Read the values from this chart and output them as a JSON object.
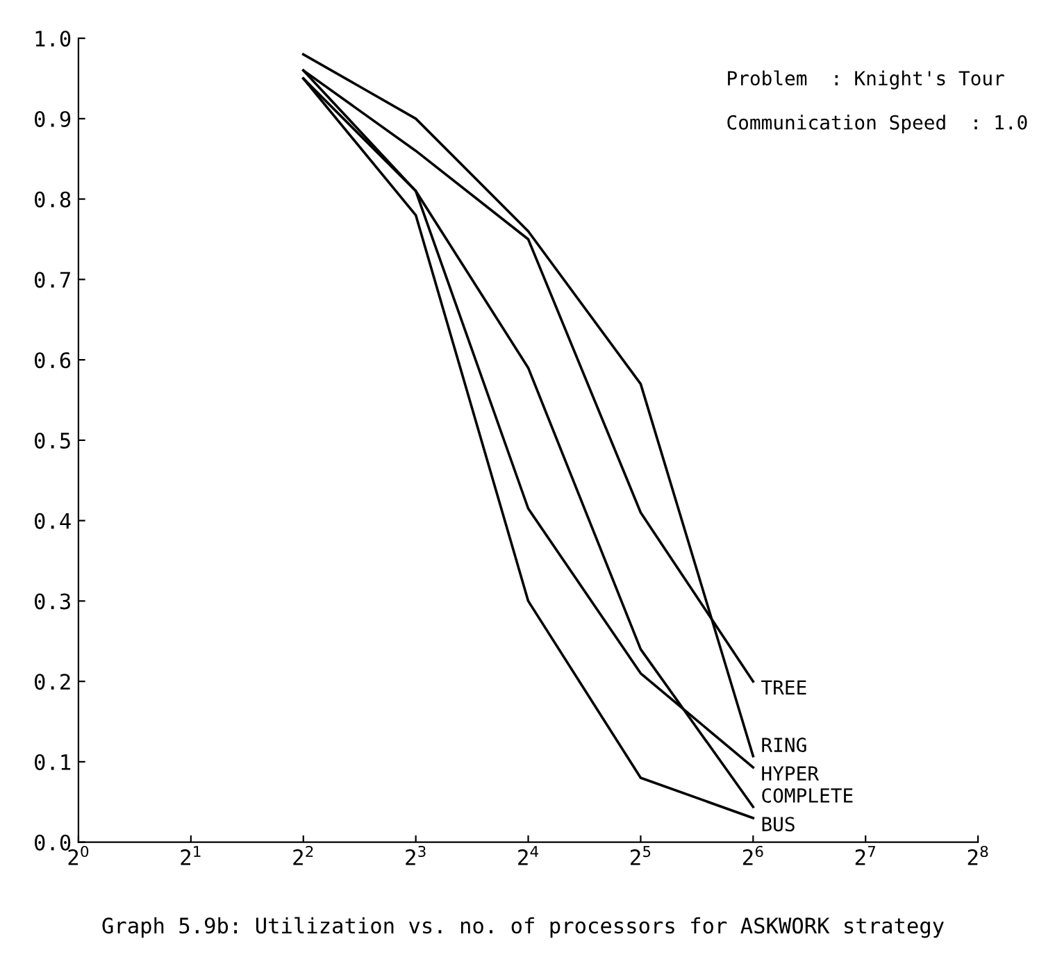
{
  "chart_data": {
    "type": "line",
    "x": [
      4,
      8,
      16,
      32,
      64
    ],
    "log": "x",
    "series": [
      {
        "name": "TREE",
        "color": "#000000",
        "values": [
          0.96,
          0.86,
          0.75,
          0.41,
          0.2
        ]
      },
      {
        "name": "RING",
        "color": "#000000",
        "values": [
          0.98,
          0.9,
          0.76,
          0.57,
          0.107
        ]
      },
      {
        "name": "HYPER",
        "color": "#000000",
        "values": [
          0.95,
          0.81,
          0.415,
          0.21,
          0.093
        ]
      },
      {
        "name": "COMPLETE",
        "color": "#000000",
        "values": [
          0.96,
          0.81,
          0.59,
          0.24,
          0.044
        ]
      },
      {
        "name": "BUS",
        "color": "#000000",
        "values": [
          0.95,
          0.78,
          0.3,
          0.08,
          0.03
        ]
      }
    ],
    "xlim": [
      1,
      256
    ],
    "ylim": [
      0,
      1
    ],
    "xticks": [
      {
        "value": 1,
        "label": "2$^{0}$"
      },
      {
        "value": 2,
        "label": "2$^{1}$"
      },
      {
        "value": 4,
        "label": "2$^{2}$"
      },
      {
        "value": 8,
        "label": "2$^{3}$"
      },
      {
        "value": 16,
        "label": "2$^{4}$"
      },
      {
        "value": 32,
        "label": "2$^{5}$"
      },
      {
        "value": 64,
        "label": "2$^{6}$"
      },
      {
        "value": 128,
        "label": "2$^{7}$"
      },
      {
        "value": 256,
        "label": "2$^{8}$"
      }
    ],
    "yticks": [
      {
        "value": 0,
        "label": "0.0"
      },
      {
        "value": 0.1,
        "label": "0.1"
      },
      {
        "value": 0.2,
        "label": "0.2"
      },
      {
        "value": 0.3,
        "label": "0.3"
      },
      {
        "value": 0.4,
        "label": "0.4"
      },
      {
        "value": 0.5,
        "label": "0.5"
      },
      {
        "value": 0.6,
        "label": "0.6"
      },
      {
        "value": 0.7,
        "label": "0.7"
      },
      {
        "value": 0.8,
        "label": "0.8"
      },
      {
        "value": 0.9,
        "label": "0.9"
      },
      {
        "value": 1,
        "label": "1.0"
      }
    ],
    "annotations": [
      "Problem  : Knight's Tour",
      "Communication Speed  : 1.0",
      "Graph 5.9b: Utilization vs. no. of processors for ASKWORK strategy"
    ],
    "grid": false,
    "legend": false,
    "marker": "none",
    "line_style": "solid"
  }
}
